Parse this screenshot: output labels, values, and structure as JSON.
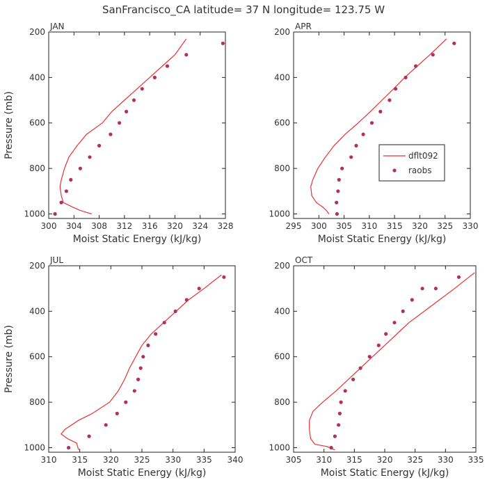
{
  "title": "SanFrancisco_CA  latitude= 37 N longitude= 123.75 W",
  "colors": {
    "model_line": "#e8312f",
    "raobs_marker": "#b03060",
    "axis": "#222222",
    "text": "#333333"
  },
  "legend": {
    "line_label": "dflt092",
    "marker_label": "raobs"
  },
  "chart_data": [
    {
      "type": "line",
      "panel": "JAN",
      "xlabel": "Moist Static Energy (kJ/kg)",
      "ylabel": "Pressure (mb)",
      "xlim": [
        300,
        328
      ],
      "ylim": [
        1020,
        200
      ],
      "xticks": [
        300,
        304,
        308,
        312,
        316,
        320,
        324,
        328
      ],
      "yticks": [
        200,
        400,
        600,
        800,
        1000
      ],
      "series": [
        {
          "name": "dflt092",
          "style": "line",
          "x": [
            306.8,
            305.0,
            303.8,
            302.3,
            302.0,
            301.8,
            302.0,
            302.5,
            303.2,
            304.5,
            306.0,
            308.5,
            310.0,
            312.0,
            314.0,
            316.0,
            318.0,
            320.0,
            321.8
          ],
          "y": [
            1000,
            985,
            970,
            950,
            920,
            880,
            850,
            800,
            750,
            700,
            650,
            600,
            550,
            500,
            450,
            400,
            350,
            300,
            230
          ]
        },
        {
          "name": "raobs",
          "style": "marker",
          "x": [
            301.0,
            302.0,
            302.8,
            303.5,
            305.0,
            306.5,
            308.0,
            309.8,
            311.2,
            312.3,
            313.5,
            314.8,
            316.8,
            318.8,
            321.8,
            327.6
          ],
          "y": [
            1000,
            950,
            900,
            850,
            800,
            750,
            700,
            650,
            600,
            550,
            500,
            450,
            400,
            350,
            300,
            250
          ]
        }
      ]
    },
    {
      "type": "line",
      "panel": "APR",
      "xlabel": "Moist Static Energy (kJ/kg)",
      "ylabel": "",
      "xlim": [
        295,
        330
      ],
      "ylim": [
        1020,
        200
      ],
      "xticks": [
        295,
        300,
        305,
        310,
        315,
        320,
        325,
        330
      ],
      "yticks": [
        200,
        400,
        600,
        800,
        1000
      ],
      "legend_position": "middle-right",
      "series": [
        {
          "name": "dflt092",
          "style": "line",
          "x": [
            302.0,
            301.5,
            300.8,
            299.5,
            298.6,
            298.4,
            298.8,
            299.8,
            301.3,
            303.0,
            305.2,
            307.8,
            310.2,
            312.5,
            314.8,
            317.0,
            319.5,
            322.0,
            325.3
          ],
          "y": [
            1000,
            985,
            970,
            950,
            920,
            880,
            850,
            800,
            750,
            700,
            650,
            600,
            550,
            500,
            450,
            400,
            350,
            300,
            230
          ]
        },
        {
          "name": "raobs",
          "style": "marker",
          "x": [
            303.6,
            303.5,
            303.8,
            304.0,
            304.6,
            306.4,
            307.4,
            308.8,
            310.5,
            312.2,
            314.0,
            315.2,
            317.2,
            319.2,
            322.6,
            326.8
          ],
          "y": [
            1000,
            950,
            900,
            850,
            800,
            750,
            700,
            650,
            600,
            550,
            500,
            450,
            400,
            350,
            300,
            250
          ]
        }
      ]
    },
    {
      "type": "line",
      "panel": "JUL",
      "xlabel": "Moist Static Energy (kJ/kg)",
      "ylabel": "Pressure (mb)",
      "xlim": [
        310,
        340
      ],
      "ylim": [
        1020,
        200
      ],
      "xticks": [
        310,
        315,
        320,
        325,
        330,
        335,
        340
      ],
      "yticks": [
        200,
        400,
        600,
        800,
        1000
      ],
      "series": [
        {
          "name": "dflt092",
          "style": "line",
          "x": [
            314.8,
            314.5,
            313.0,
            312.0,
            312.6,
            314.8,
            317.0,
            319.8,
            321.2,
            322.2,
            323.0,
            324.0,
            325.0,
            326.5,
            328.5,
            330.5,
            332.5,
            335.0,
            337.8
          ],
          "y": [
            1010,
            980,
            960,
            940,
            920,
            880,
            850,
            800,
            750,
            700,
            650,
            600,
            550,
            500,
            450,
            400,
            350,
            300,
            240
          ]
        },
        {
          "name": "raobs",
          "style": "marker",
          "x": [
            313.2,
            316.5,
            319.2,
            321.0,
            322.4,
            323.8,
            324.4,
            324.8,
            325.2,
            326.0,
            327.2,
            328.6,
            330.4,
            332.2,
            334.2,
            338.2
          ],
          "y": [
            1000,
            950,
            900,
            850,
            800,
            750,
            700,
            650,
            600,
            550,
            500,
            450,
            400,
            350,
            300,
            250
          ]
        }
      ]
    },
    {
      "type": "line",
      "panel": "OCT",
      "xlabel": "Moist Static Energy (kJ/kg)",
      "ylabel": "",
      "xlim": [
        305,
        335
      ],
      "ylim": [
        1020,
        200
      ],
      "xticks": [
        305,
        310,
        315,
        320,
        325,
        330,
        335
      ],
      "yticks": [
        200,
        400,
        600,
        800,
        1000
      ],
      "series": [
        {
          "name": "dflt092",
          "style": "line",
          "x": [
            311.8,
            310.5,
            308.5,
            307.8,
            307.6,
            307.6,
            308.2,
            309.8,
            312.0,
            314.0,
            316.0,
            318.0,
            320.0,
            322.0,
            324.0,
            326.5,
            329.0,
            331.5,
            334.8
          ],
          "y": [
            1010,
            995,
            985,
            960,
            920,
            880,
            840,
            800,
            750,
            700,
            650,
            600,
            550,
            500,
            450,
            400,
            350,
            300,
            230
          ]
        },
        {
          "name": "raobs",
          "style": "marker",
          "x": [
            311.2,
            311.8,
            312.4,
            312.6,
            312.8,
            313.5,
            314.8,
            316.0,
            317.5,
            319.0,
            320.2,
            321.6,
            323.0,
            324.5,
            326.2,
            328.4,
            332.2
          ],
          "y": [
            1000,
            950,
            900,
            850,
            800,
            750,
            700,
            650,
            600,
            550,
            500,
            450,
            400,
            350,
            300,
            300,
            250
          ]
        }
      ]
    }
  ]
}
